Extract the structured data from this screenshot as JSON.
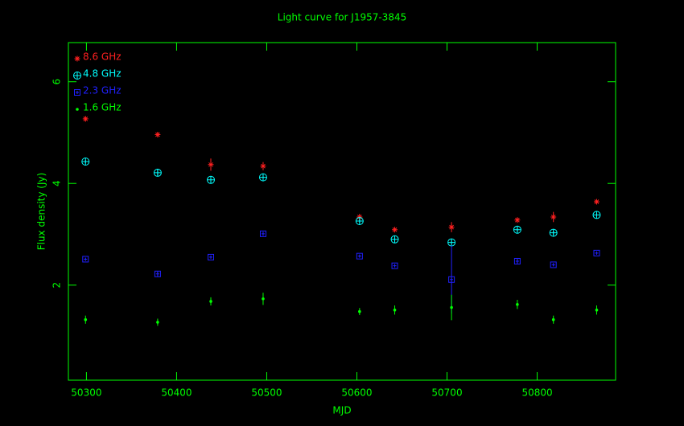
{
  "chart_data": {
    "type": "scatter",
    "title": "Light curve for J1957-3845",
    "x_label": "MJD",
    "y_label": "Flux density (Jy)",
    "axis_color": "#00ff00",
    "x": [
      50299,
      50379,
      50438,
      50496,
      50603,
      50642,
      50705,
      50778,
      50818,
      50866
    ],
    "series": [
      {
        "name": "8.6 GHz",
        "color": "#ff2020",
        "marker": "star",
        "values": [
          5.27,
          4.96,
          4.37,
          4.34,
          3.34,
          3.09,
          3.14,
          3.28,
          3.34,
          3.64
        ],
        "errors": [
          0.05,
          0.05,
          0.12,
          0.08,
          0.06,
          0.05,
          0.1,
          0.05,
          0.1,
          0.05
        ]
      },
      {
        "name": "4.8 GHz",
        "color": "#00ffff",
        "marker": "circle-plus",
        "values": [
          4.43,
          4.21,
          4.07,
          4.12,
          3.26,
          2.9,
          2.84,
          3.09,
          3.03,
          3.38
        ],
        "errors": [
          0.03,
          0.06,
          0.04,
          0.04,
          0.04,
          0.04,
          0.05,
          0.04,
          0.04,
          0.04
        ]
      },
      {
        "name": "2.3 GHz",
        "color": "#2020ff",
        "marker": "square",
        "values": [
          2.51,
          2.22,
          2.55,
          3.01,
          2.57,
          2.38,
          2.11,
          2.47,
          2.4,
          2.63
        ],
        "errors": [
          0.03,
          0.05,
          0.03,
          0.04,
          0.03,
          0.03,
          0.67,
          0.05,
          0.03,
          0.03
        ]
      },
      {
        "name": "1.6 GHz",
        "color": "#00ff00",
        "marker": "dot",
        "values": [
          1.32,
          1.27,
          1.68,
          1.73,
          1.48,
          1.51,
          1.56,
          1.62,
          1.32,
          1.51
        ],
        "errors": [
          0.08,
          0.07,
          0.08,
          0.12,
          0.07,
          0.09,
          0.25,
          0.09,
          0.08,
          0.09
        ]
      }
    ],
    "xlim": [
      50280,
      50887
    ],
    "ylim": [
      0.13,
      6.77
    ],
    "xticks": [
      50300,
      50400,
      50500,
      50600,
      50700,
      50800
    ],
    "yticks": [
      2,
      4,
      6
    ],
    "legend": "top-left"
  }
}
